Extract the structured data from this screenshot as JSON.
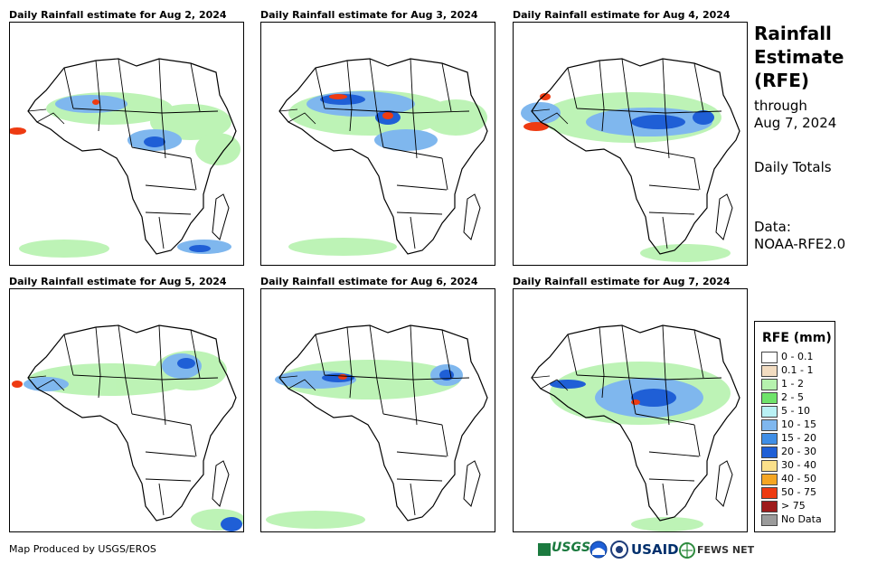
{
  "panels": [
    {
      "title": "Daily Rainfall estimate for Aug 2, 2024"
    },
    {
      "title": "Daily Rainfall estimate for Aug 3, 2024"
    },
    {
      "title": "Daily Rainfall estimate for Aug 4, 2024"
    },
    {
      "title": "Daily Rainfall estimate for Aug 5, 2024"
    },
    {
      "title": "Daily Rainfall estimate for Aug 6, 2024"
    },
    {
      "title": "Daily Rainfall estimate for Aug 7, 2024"
    }
  ],
  "side": {
    "title_line1": "Rainfall",
    "title_line2": "Estimate",
    "title_line3": "(RFE)",
    "through_line1": "through",
    "through_line2": "Aug 7, 2024",
    "totals": "Daily Totals",
    "data_line1": "Data:",
    "data_line2": "NOAA-RFE2.0"
  },
  "legend": {
    "title": "RFE (mm)",
    "items": [
      {
        "label": "0 - 0.1",
        "color": "#ffffff"
      },
      {
        "label": "0.1 - 1",
        "color": "#f2dcc1"
      },
      {
        "label": "1 - 2",
        "color": "#b6f2ae"
      },
      {
        "label": "2 - 5",
        "color": "#6fe36a"
      },
      {
        "label": "5 - 10",
        "color": "#b9f1f4"
      },
      {
        "label": "10 - 15",
        "color": "#7fb7ee"
      },
      {
        "label": "15 - 20",
        "color": "#3f8ee6"
      },
      {
        "label": "20 - 30",
        "color": "#1f5fd6"
      },
      {
        "label": "30 - 40",
        "color": "#fbe08a"
      },
      {
        "label": "40 - 50",
        "color": "#f5a623"
      },
      {
        "label": "50 - 75",
        "color": "#ee3b12"
      },
      {
        "label": "> 75",
        "color": "#9e1b1b"
      },
      {
        "label": "No Data",
        "color": "#9b9b9b"
      }
    ]
  },
  "credit": "Map Produced by USGS/EROS",
  "logos": {
    "usgs": "USGS",
    "usaid": "USAID",
    "fews": "FEWS NET"
  }
}
